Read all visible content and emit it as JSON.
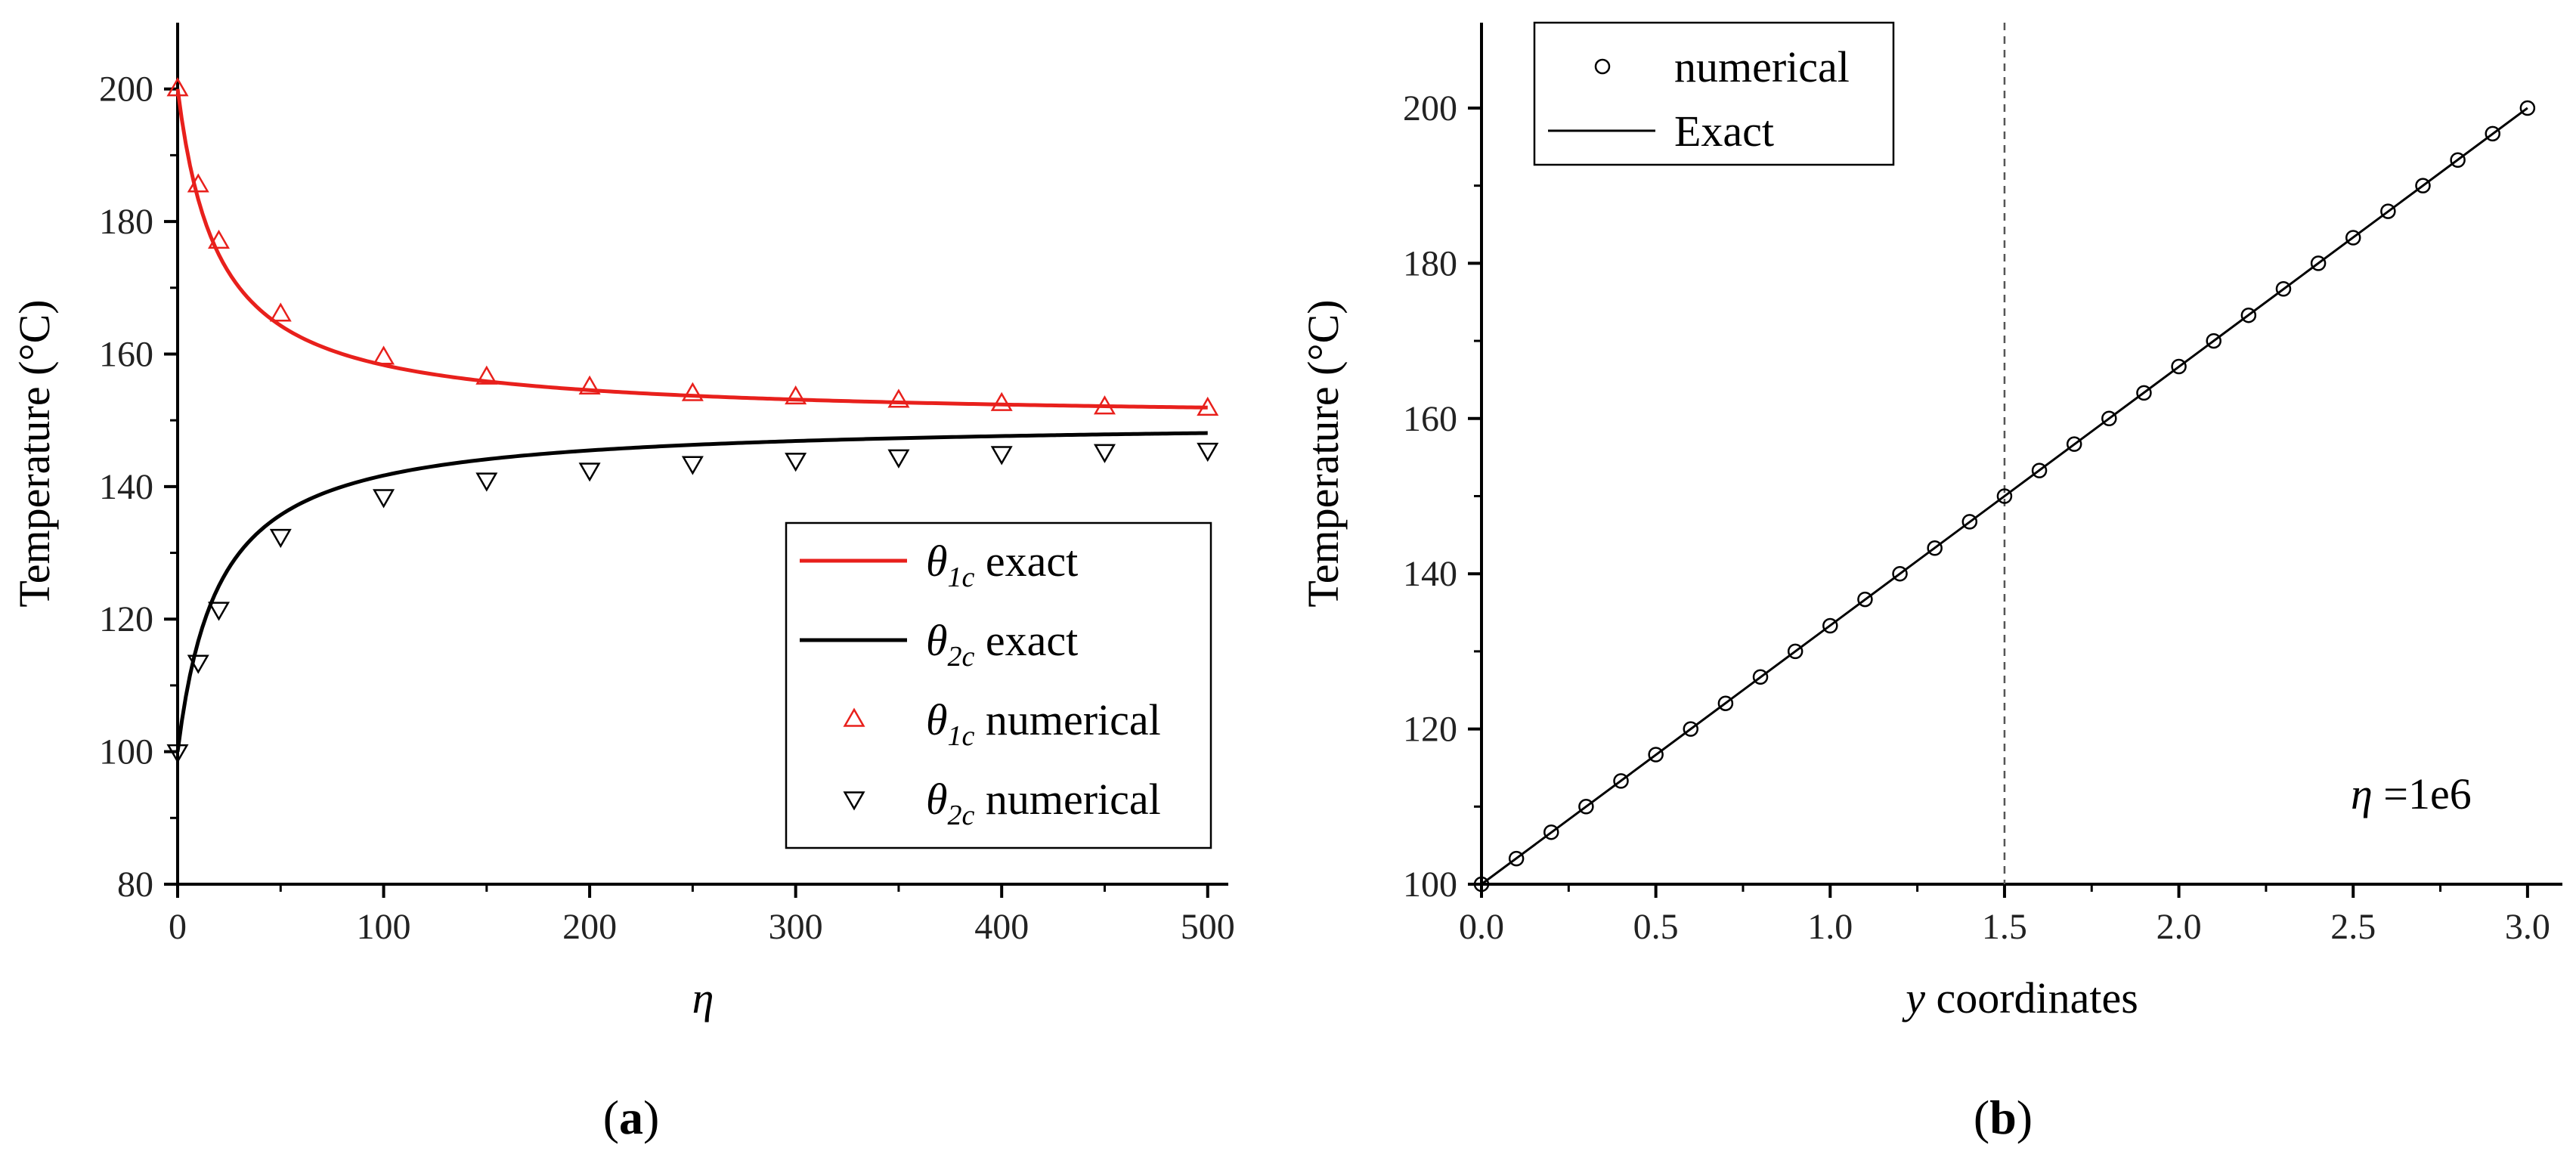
{
  "chart_data": [
    {
      "id": "a",
      "type": "line",
      "caption": "a",
      "xlabel": "η",
      "ylabel": "Temperature (°C)",
      "xlim": [
        0,
        510
      ],
      "ylim": [
        80,
        210
      ],
      "xticks": [
        0,
        100,
        200,
        300,
        400,
        500
      ],
      "yticks": [
        80,
        100,
        120,
        140,
        160,
        180,
        200
      ],
      "legend": {
        "position": "center-right",
        "entries": [
          {
            "symbol": "θ",
            "sub": "1c",
            "text": "exact",
            "color": "#e8201c",
            "marker": "line"
          },
          {
            "symbol": "θ",
            "sub": "2c",
            "text": "exact",
            "color": "#000000",
            "marker": "line"
          },
          {
            "symbol": "θ",
            "sub": "1c",
            "text": "numerical",
            "color": "#e8201c",
            "marker": "triangle-up"
          },
          {
            "symbol": "θ",
            "sub": "2c",
            "text": "numerical",
            "color": "#000000",
            "marker": "triangle-down"
          }
        ]
      },
      "series": [
        {
          "name": "θ1c exact",
          "kind": "line",
          "color": "#e8201c",
          "formula": "150+50*20/(20+x)"
        },
        {
          "name": "θ2c exact",
          "kind": "line",
          "color": "#000000",
          "formula": "150-50*20/(20+x)"
        },
        {
          "name": "θ1c numerical",
          "kind": "triangle-up",
          "color": "#e8201c",
          "x": [
            0,
            10,
            20,
            50,
            100,
            150,
            200,
            250,
            300,
            350,
            400,
            450,
            500
          ],
          "y": [
            200,
            185.5,
            177,
            166,
            159.5,
            156.5,
            155,
            154,
            153.5,
            153,
            152.5,
            152,
            151.8
          ]
        },
        {
          "name": "θ2c numerical",
          "kind": "triangle-down",
          "color": "#000000",
          "x": [
            0,
            10,
            20,
            50,
            100,
            150,
            200,
            250,
            300,
            350,
            400,
            450,
            500
          ],
          "y": [
            100,
            113.5,
            121.5,
            132.5,
            138.5,
            141,
            142.5,
            143.5,
            144,
            144.5,
            145,
            145.3,
            145.5
          ]
        }
      ]
    },
    {
      "id": "b",
      "type": "line",
      "caption": "b",
      "xlabel": "y coordinates",
      "ylabel": "Temperature (°C)",
      "xlim": [
        0,
        3.1
      ],
      "ylim": [
        100,
        211
      ],
      "xticks": [
        0.0,
        0.5,
        1.0,
        1.5,
        2.0,
        2.5,
        3.0
      ],
      "xtick_labels": [
        "0.0",
        "0.5",
        "1.0",
        "1.5",
        "2.0",
        "2.5",
        "3.0"
      ],
      "yticks": [
        100,
        120,
        140,
        160,
        180,
        200
      ],
      "annotation": {
        "symbol": "η",
        "text": " =1e6"
      },
      "reference_line_x": 1.5,
      "legend": {
        "position": "top-left",
        "entries": [
          {
            "text": "numerical",
            "marker": "circle"
          },
          {
            "text": "Exact",
            "marker": "line"
          }
        ]
      },
      "series": [
        {
          "name": "Exact",
          "kind": "line",
          "color": "#000000",
          "x": [
            0,
            3
          ],
          "y": [
            100,
            200
          ]
        },
        {
          "name": "numerical",
          "kind": "circle",
          "color": "#000000",
          "x": [
            0.0,
            0.1,
            0.2,
            0.3,
            0.4,
            0.5,
            0.6,
            0.7,
            0.8,
            0.9,
            1.0,
            1.1,
            1.2,
            1.3,
            1.4,
            1.5,
            1.6,
            1.7,
            1.8,
            1.9,
            2.0,
            2.1,
            2.2,
            2.3,
            2.4,
            2.5,
            2.6,
            2.7,
            2.8,
            2.9,
            3.0
          ],
          "y": [
            100.0,
            103.3,
            106.7,
            110.0,
            113.3,
            116.7,
            120.0,
            123.3,
            126.7,
            130.0,
            133.3,
            136.7,
            140.0,
            143.3,
            146.7,
            150.0,
            153.3,
            156.7,
            160.0,
            163.3,
            166.7,
            170.0,
            173.3,
            176.7,
            180.0,
            183.3,
            186.7,
            190.0,
            193.3,
            196.7,
            200.0
          ]
        }
      ]
    }
  ]
}
